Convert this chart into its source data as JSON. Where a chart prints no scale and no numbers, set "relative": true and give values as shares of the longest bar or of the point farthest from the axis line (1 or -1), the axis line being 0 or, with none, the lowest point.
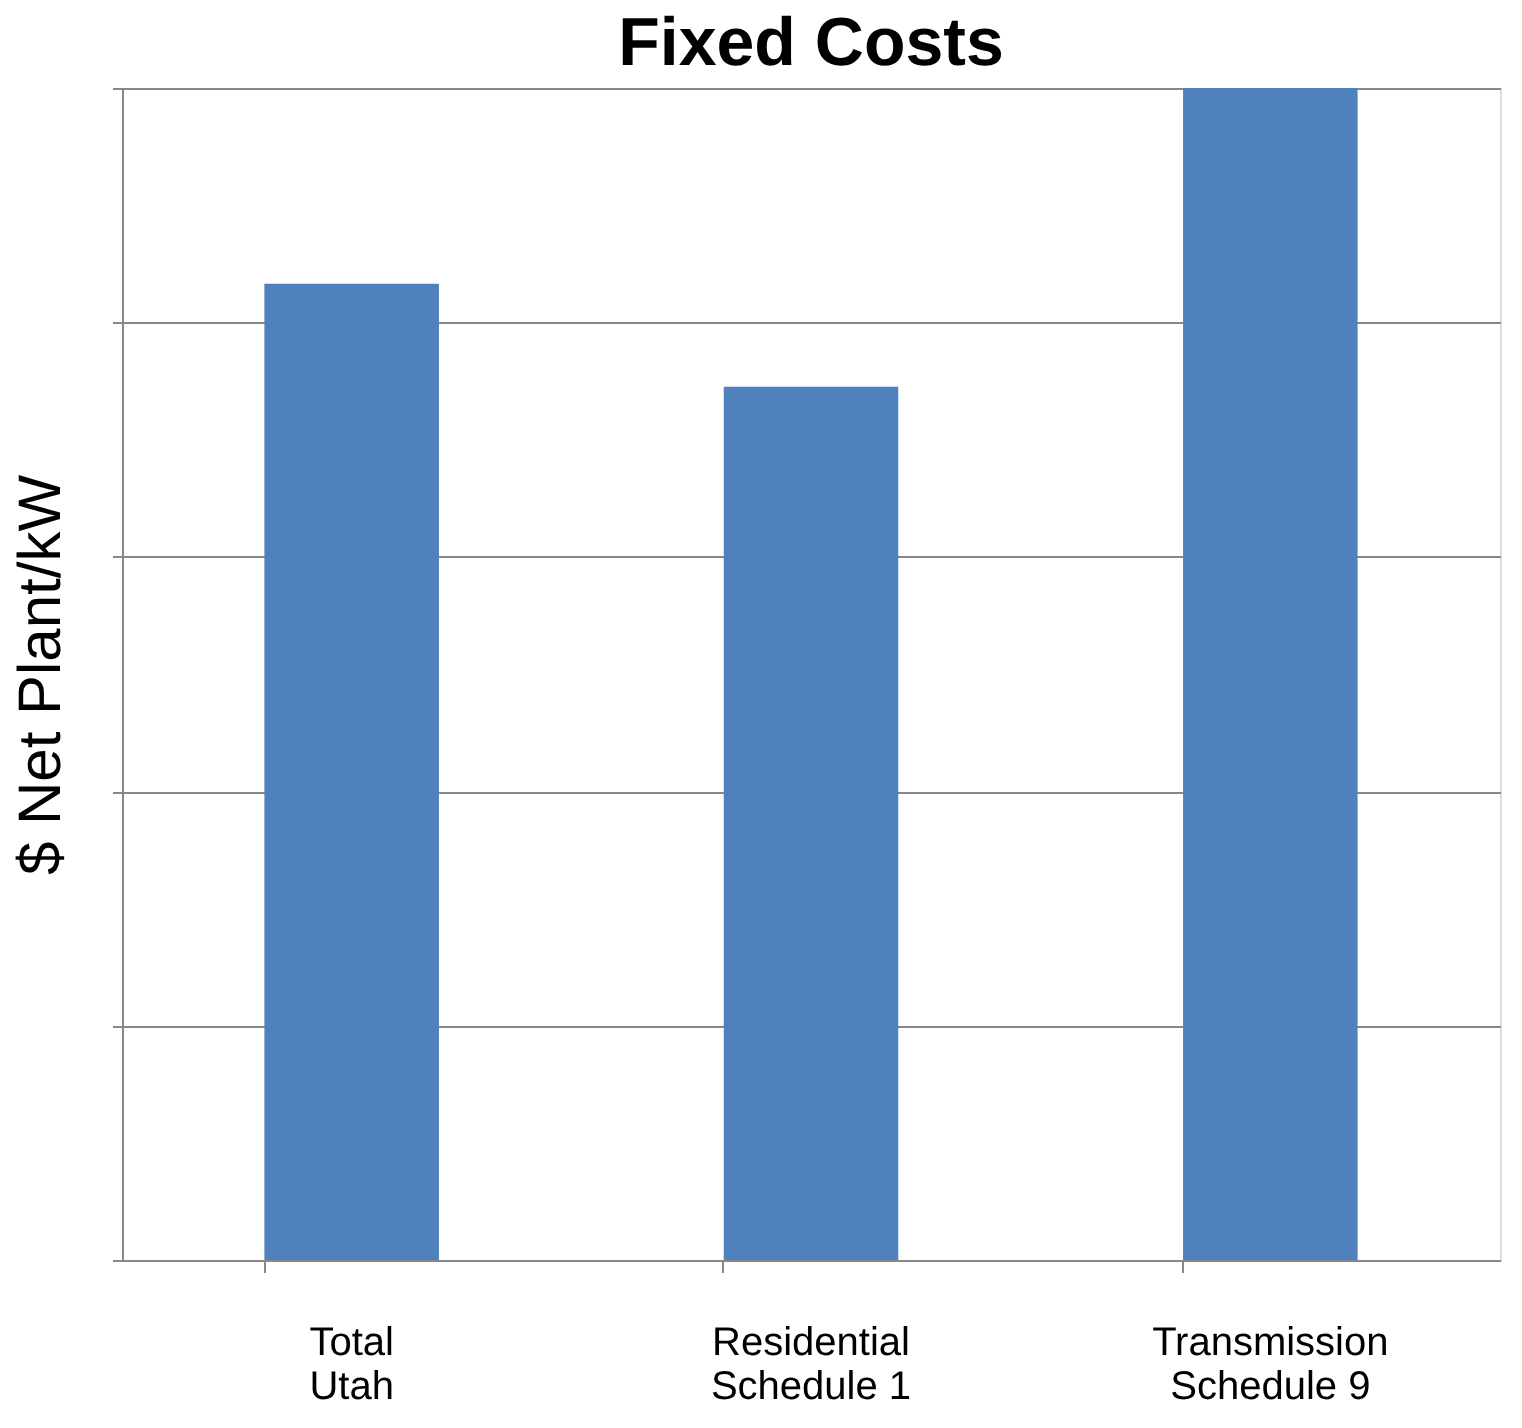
{
  "chart_data": {
    "type": "bar",
    "title": "Fixed Costs",
    "ylabel": "$ Net Plant/kW",
    "categories": [
      "Total Utah",
      "Residential Schedule 1",
      "Transmission Schedule 9"
    ],
    "values": [
      0.833,
      0.745,
      1
    ],
    "color": "#4f81bd",
    "relative": true,
    "grid": "y"
  }
}
